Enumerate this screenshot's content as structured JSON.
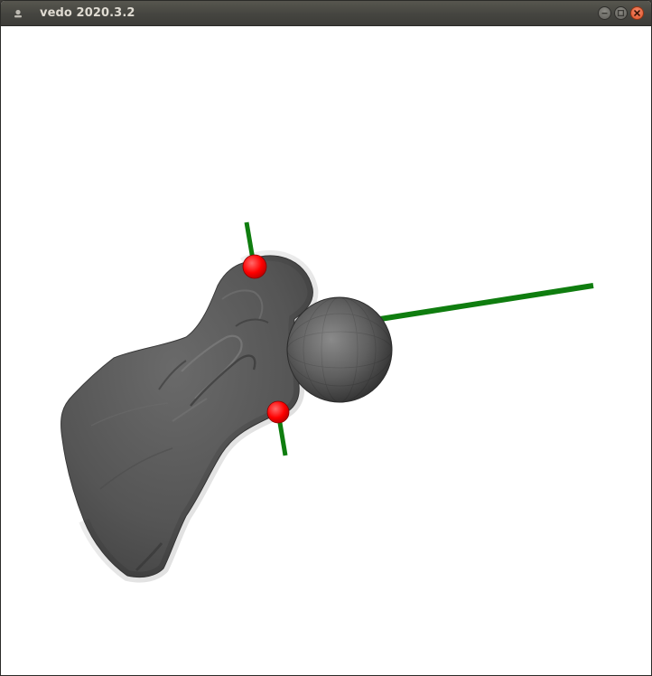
{
  "window": {
    "title": "vedo 2020.3.2",
    "icon": "app-icon",
    "controls": {
      "minimize": "minimize-icon",
      "maximize": "maximize-icon",
      "close": "close-icon"
    }
  },
  "scene": {
    "background": "#ffffff",
    "bone_color": "#555555",
    "sphere_color": "#5e5e5e",
    "axis_color": "#0f7d0f",
    "marker_color": "#ff0000"
  }
}
